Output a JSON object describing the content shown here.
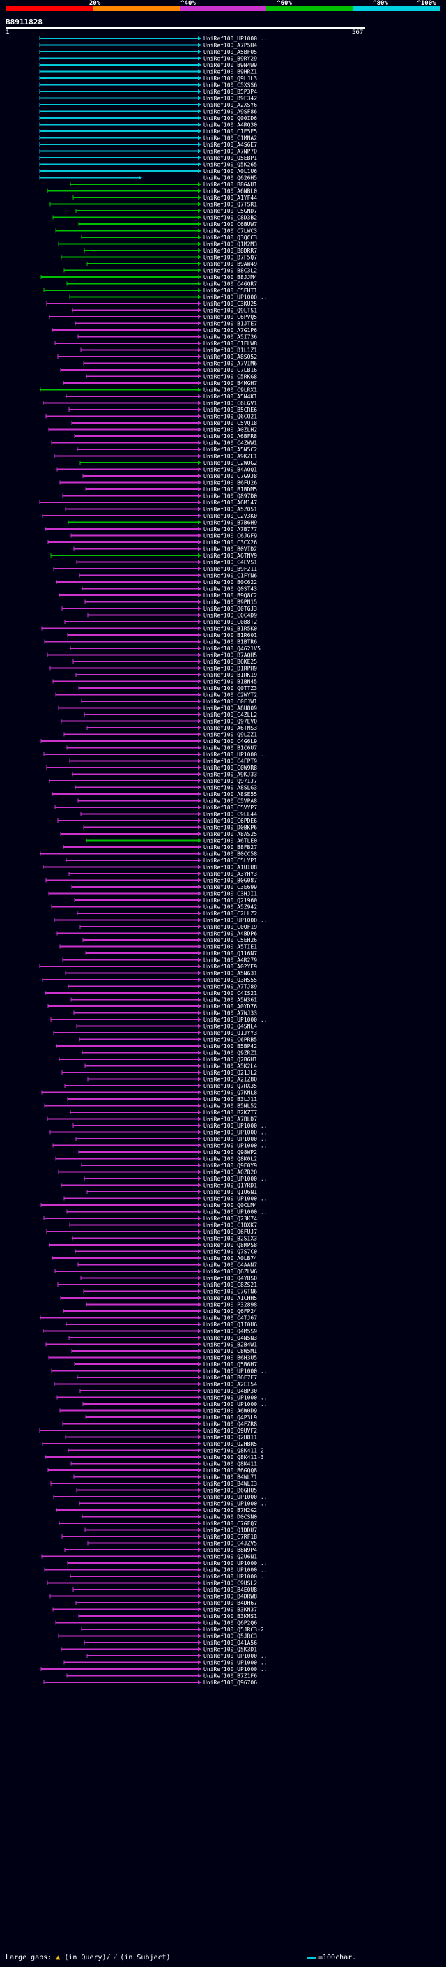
{
  "legend": {
    "labels": [
      "20%",
      "^40%",
      "^60%",
      "^80%",
      "^100%"
    ],
    "colors": [
      "#ff0000",
      "#ff8800",
      "#cc33cc",
      "#00c000",
      "#00d0e0"
    ]
  },
  "query": {
    "id": "B8911828",
    "start": "1",
    "end": "567"
  },
  "colors": {
    "cyan": "#00c8d8",
    "green": "#00c000",
    "magenta": "#cc33cc"
  },
  "hit_labels": [
    "UniRef100_UP1000...",
    "UniRef100_A7P5H4",
    "UniRef100_A5BF05",
    "UniRef100_B9RY29",
    "UniRef100_B9N4W9",
    "UniRef100_B9HRZ1",
    "UniRef100_Q9LJL3",
    "UniRef100_C5XSS6",
    "UniRef100_B5P3P4",
    "UniRef100_B9F342",
    "UniRef100_A2XSY6",
    "UniRef100_A9SF86",
    "UniRef100_Q00ID6",
    "UniRef100_A4RQ30",
    "UniRef100_C1E5F5",
    "UniRef100_C1MNA2",
    "UniRef100_A4S6E7",
    "UniRef100_A7NP7D",
    "UniRef100_Q5EBP1",
    "UniRef100_Q5K265",
    "UniRef100_A0L1U6",
    "UniRef100_Q626H5",
    "UniRef100_B8GAU1",
    "UniRef100_A6NBL0",
    "UniRef100_A1YF44",
    "UniRef100_Q7TSR1",
    "UniRef100_C5GND7",
    "UniRef100_C8D3B2",
    "UniRef100_C6BUW7",
    "UniRef100_C7LWC3",
    "UniRef100_Q3QCC3",
    "UniRef100_Q1M2M3",
    "UniRef100_B8DRR7",
    "UniRef100_B7F5Q7",
    "UniRef100_B9AW49",
    "UniRef100_B8C3L2",
    "UniRef100_B8JJM4",
    "UniRef100_C4GQR7",
    "UniRef100_C5EHT1",
    "UniRef100_UP1000...",
    "UniRef100_C3KU25",
    "UniRef100_Q9LTS1",
    "UniRef100_C6PVQ5",
    "UniRef100_B1JTE7",
    "UniRef100_A7G1P6",
    "UniRef100_A5I736",
    "UniRef100_C1FLW8",
    "UniRef100_B1L1Z1",
    "UniRef100_A8SQ52",
    "UniRef100_A7VIM6",
    "UniRef100_C7LB16",
    "UniRef100_C5RKG8",
    "UniRef100_B4MGH7",
    "UniRef100_C9LRX1",
    "UniRef100_A5N4K1",
    "UniRef100_C6LGV1",
    "UniRef100_B5CRE6",
    "UniRef100_Q6CQ21",
    "UniRef100_C5VQ18",
    "UniRef100_A0ZLH2",
    "UniRef100_A6BFR8",
    "UniRef100_C4ZWW1",
    "UniRef100_A5N5C2",
    "UniRef100_A9KZE1",
    "UniRef100_C2WQG2",
    "UniRef100_B4AQQ1",
    "UniRef100_C7G9J8",
    "UniRef100_B6FU26",
    "UniRef100_B1BDM5",
    "UniRef100_Q897D0",
    "UniRef100_A6M147",
    "UniRef100_A5Z051",
    "UniRef100_C2V3K0",
    "UniRef100_B7B6H9",
    "UniRef100_A7B777",
    "UniRef100_C6JGF9",
    "UniRef100_C3CX26",
    "UniRef100_B0VID2",
    "UniRef100_A6TNV9",
    "UniRef100_C4EVS1",
    "UniRef100_B9F211",
    "UniRef100_C1FYN6",
    "UniRef100_B0C622",
    "UniRef100_Q0ST43",
    "UniRef100_B9Q8C2",
    "UniRef100_B9PN15",
    "UniRef100_Q0TGJ3",
    "UniRef100_C0C4D9",
    "UniRef100_C0B8T2",
    "UniRef100_B1R5K0",
    "UniRef100_B1R601",
    "UniRef100_B1BTR6",
    "UniRef100_Q4621V5",
    "UniRef100_B7AQH5",
    "UniRef100_B6KE25",
    "UniRef100_B1RPH9",
    "UniRef100_B1RK19",
    "UniRef100_B1BN45",
    "UniRef100_Q0TTZ3",
    "UniRef100_C2WYT2",
    "UniRef100_C0FJW1",
    "UniRef100_A8U809",
    "UniRef100_C4ZLL2",
    "UniRef100_Q97EV0",
    "UniRef100_A6TMS3",
    "UniRef100_Q9LZZ1",
    "UniRef100_C4G6L9",
    "UniRef100_B1C6U7",
    "UniRef100_UP1000...",
    "UniRef100_C4FPT9",
    "UniRef100_C0W9R8",
    "UniRef100_A9KJ33",
    "UniRef100_Q97IJ7",
    "UniRef100_A8SLG3",
    "UniRef100_A8SE55",
    "UniRef100_C5VPA8",
    "UniRef100_C5VYP7",
    "UniRef100_C9LL44",
    "UniRef100_C6PDE6",
    "UniRef100_D0BKP6",
    "UniRef100_A8AS25",
    "UniRef100_A6TLE0",
    "UniRef100_B8FB27",
    "UniRef100_B0CC58",
    "UniRef100_C5LYP1",
    "UniRef100_A1UIU8",
    "UniRef100_A3YHY3",
    "UniRef100_B0G087",
    "UniRef100_C3E699",
    "UniRef100_C3HJI1",
    "UniRef100_Q21960",
    "UniRef100_A5Z942",
    "UniRef100_C2LLZ2",
    "UniRef100_UP1000...",
    "UniRef100_C0QF19",
    "UniRef100_A4BDP6",
    "UniRef100_C5EH26",
    "UniRef100_A5TIE1",
    "UniRef100_Q116N7",
    "UniRef100_A4R279",
    "UniRef100_A02YE9",
    "UniRef100_A5N631",
    "UniRef100_Q3HS55",
    "UniRef100_A7TJ89",
    "UniRef100_C4IS21",
    "UniRef100_A5N361",
    "UniRef100_A0YD76",
    "UniRef100_A7WJ33",
    "UniRef100_UP1000...",
    "UniRef100_Q4SNL4",
    "UniRef100_Q1JYY3",
    "UniRef100_C6PRB5",
    "UniRef100_B5BP42",
    "UniRef100_Q9ZRZ1",
    "UniRef100_Q2BGH1",
    "UniRef100_A5K2L4",
    "UniRef100_Q21JL2",
    "UniRef100_A2IZ80",
    "UniRef100_Q7RX35",
    "UniRef100_Q7KNL8",
    "UniRef100_B3LJ11",
    "UniRef100_B5NL52",
    "UniRef100_B2KZT7",
    "UniRef100_A7BLD7",
    "UniRef100_UP1000...",
    "UniRef100_UP1000...",
    "UniRef100_UP1000...",
    "UniRef100_UP1000...",
    "UniRef100_Q98WP2",
    "UniRef100_Q8K0L2",
    "UniRef100_Q9E0Y9",
    "UniRef100_A0ZB20",
    "UniRef100_UP1000...",
    "UniRef100_Q1YRD1",
    "UniRef100_Q1U6N1",
    "UniRef100_UP1000...",
    "UniRef100_Q0CLM4",
    "UniRef100_UP1000...",
    "UniRef100_Q23K74",
    "UniRef100_C1DXK7",
    "UniRef100_Q6FUJ7",
    "UniRef100_B2SIX3",
    "UniRef100_Q8MPS8",
    "UniRef100_Q7S7C0",
    "UniRef100_A0LB74",
    "UniRef100_C4AAN7",
    "UniRef100_Q6ZLW6",
    "UniRef100_Q4YBS0",
    "UniRef100_C8ZS21",
    "UniRef100_C7GTN6",
    "UniRef100_A1CHH5",
    "UniRef100_P32898",
    "UniRef100_Q6FP24",
    "UniRef100_C4TJ67",
    "UniRef100_Q1I0U6",
    "UniRef100_Q4M5S9",
    "UniRef100_Q4N5N3",
    "UniRef100_B2B4W1",
    "UniRef100_C8W5M1",
    "UniRef100_B6H3U5",
    "UniRef100_Q5B6H7",
    "UniRef100_UP1000...",
    "UniRef100_B6F7F7",
    "UniRef100_A2EI54",
    "UniRef100_Q4BP30",
    "UniRef100_UP1000...",
    "UniRef100_UP1000...",
    "UniRef100_A6W0D9",
    "UniRef100_Q4P3L9",
    "UniRef100_Q4FZR8",
    "UniRef100_Q9UVF2",
    "UniRef100_Q2H811",
    "UniRef100_Q2HBR5",
    "UniRef100_Q8K411-2",
    "UniRef100_Q8K411-3",
    "UniRef100_Q8K411",
    "UniRef100_B6GQQ8",
    "UniRef100_B4WL71",
    "UniRef100_B4WLI3",
    "UniRef100_B6GHU5",
    "UniRef100_UP1000...",
    "UniRef100_UP1000...",
    "UniRef100_B7H2G2",
    "UniRef100_D0CSN0",
    "UniRef100_C7GFQ7",
    "UniRef100_Q1DDU7",
    "UniRef100_C7RF18",
    "UniRef100_C4JZV5",
    "UniRef100_B8N9P4",
    "UniRef100_Q2U6N1",
    "UniRef100_UP1000...",
    "UniRef100_UP1000...",
    "UniRef100_UP1000...",
    "UniRef100_C9USL2",
    "UniRef100_B4E0U8",
    "UniRef100_B4DRW8",
    "UniRef100_B4DH67",
    "UniRef100_B3KN37",
    "UniRef100_B3KMS1",
    "UniRef100_Q6P2Q6",
    "UniRef100_Q5JRC3-2",
    "UniRef100_Q5JRC3",
    "UniRef100_Q41A56",
    "UniRef100_Q5K3D1",
    "UniRef100_UP1000...",
    "UniRef100_UP1000...",
    "UniRef100_UP1000...",
    "UniRef100_B7Z1F6",
    "UniRef100_Q96706"
  ],
  "footer": {
    "large_gaps": "Large gaps:",
    "in_query": "(in Query)/",
    "in_subject": "(in Subject)",
    "scale": "=100char."
  }
}
